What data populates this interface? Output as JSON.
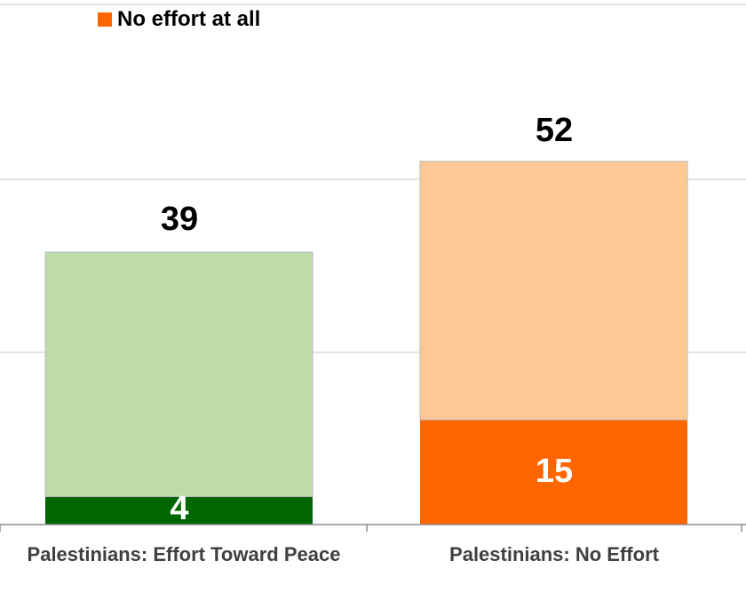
{
  "legend": {
    "label": "No effort at all",
    "color": "#ff6600"
  },
  "chart_data": {
    "type": "bar",
    "stacked": true,
    "categories": [
      "Palestinians: Effort Toward Peace",
      "Palestinians: No Effort"
    ],
    "series": [
      {
        "values": [
          4,
          15
        ],
        "colors": [
          "#006600",
          "#ff6600"
        ]
      },
      {
        "values": [
          35,
          37
        ],
        "colors": [
          "#bddca7",
          "#fec895"
        ]
      }
    ],
    "totals": [
      39,
      52
    ],
    "segment_labels": [
      "4",
      "15"
    ],
    "grid": true
  }
}
